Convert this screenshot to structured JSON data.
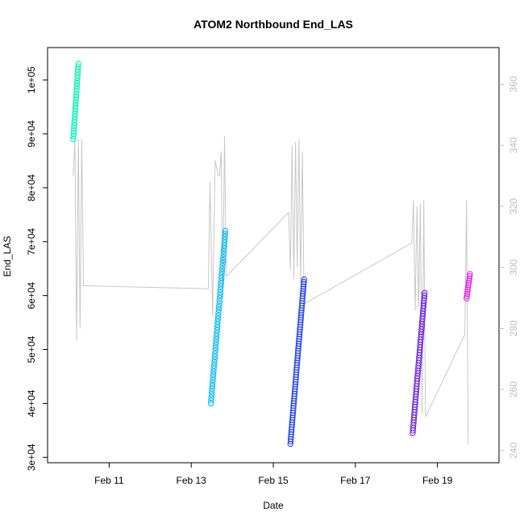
{
  "chart_data": {
    "type": "scatter",
    "title": "ATOM2 Northbound End_LAS",
    "xlabel": "Date",
    "ylabel": "End_LAS",
    "xlim": [
      "2024-02-09 12:00",
      "2024-02-20 12:00"
    ],
    "ylim": [
      29000,
      106000
    ],
    "y2lim": [
      236,
      372
    ],
    "x_ticks": [
      {
        "x": "2024-02-11",
        "label": "Feb 11"
      },
      {
        "x": "2024-02-13",
        "label": "Feb 13"
      },
      {
        "x": "2024-02-15",
        "label": "Feb 15"
      },
      {
        "x": "2024-02-17",
        "label": "Feb 17"
      },
      {
        "x": "2024-02-19",
        "label": "Feb 19"
      }
    ],
    "y_ticks": [
      {
        "value": 30000,
        "label": "3e+04"
      },
      {
        "value": 40000,
        "label": "4e+04"
      },
      {
        "value": 50000,
        "label": "5e+04"
      },
      {
        "value": 60000,
        "label": "6e+04"
      },
      {
        "value": 70000,
        "label": "7e+04"
      },
      {
        "value": 80000,
        "label": "8e+04"
      },
      {
        "value": 90000,
        "label": "9e+04"
      },
      {
        "value": 100000,
        "label": "1e+05"
      }
    ],
    "y2_ticks": [
      {
        "value": 240,
        "label": "240"
      },
      {
        "value": 260,
        "label": "260"
      },
      {
        "value": 280,
        "label": "280"
      },
      {
        "value": 300,
        "label": "300"
      },
      {
        "value": 320,
        "label": "320"
      },
      {
        "value": 340,
        "label": "340"
      },
      {
        "value": 360,
        "label": "360"
      }
    ],
    "series": [
      {
        "color": "#00f5b0",
        "x_start": "2024-02-10 03:00",
        "x_end": "2024-02-10 06:00",
        "y_start": 89000,
        "y_end": 103000,
        "n": 28
      },
      {
        "color": "#00b8f5",
        "x_start": "2024-02-13 11:30",
        "x_end": "2024-02-13 20:00",
        "y_start": 40000,
        "y_end": 72000,
        "n": 60
      },
      {
        "color": "#1f3ff0",
        "x_start": "2024-02-15 10:00",
        "x_end": "2024-02-15 18:00",
        "y_start": 32500,
        "y_end": 63000,
        "n": 70
      },
      {
        "color": "#6a1be8",
        "x_start": "2024-02-18 09:30",
        "x_end": "2024-02-18 16:30",
        "y_start": 34500,
        "y_end": 60500,
        "n": 55
      },
      {
        "color": "#e61ee6",
        "x_start": "2024-02-19 17:00",
        "x_end": "2024-02-19 19:00",
        "y_start": 59500,
        "y_end": 64000,
        "n": 12
      }
    ],
    "secondary_line": {
      "color": "#c8c8c8",
      "points": [
        [
          "2024-02-10 03:00",
          330
        ],
        [
          "2024-02-10 04:00",
          342
        ],
        [
          "2024-02-10 05:00",
          276
        ],
        [
          "2024-02-10 06:00",
          342
        ],
        [
          "2024-02-10 07:00",
          280
        ],
        [
          "2024-02-10 08:00",
          342
        ],
        [
          "2024-02-10 09:00",
          294
        ],
        [
          "2024-02-13 10:00",
          293
        ],
        [
          "2024-02-13 11:00",
          328
        ],
        [
          "2024-02-13 12:30",
          284
        ],
        [
          "2024-02-13 14:00",
          335
        ],
        [
          "2024-02-13 15:30",
          331
        ],
        [
          "2024-02-13 16:30",
          330
        ],
        [
          "2024-02-13 17:30",
          338
        ],
        [
          "2024-02-13 18:30",
          290
        ],
        [
          "2024-02-13 19:30",
          343
        ],
        [
          "2024-02-13 20:30",
          297
        ],
        [
          "2024-02-15 09:00",
          318
        ],
        [
          "2024-02-15 10:00",
          299
        ],
        [
          "2024-02-15 11:00",
          340
        ],
        [
          "2024-02-15 12:00",
          296
        ],
        [
          "2024-02-15 13:00",
          341
        ],
        [
          "2024-02-15 14:00",
          300
        ],
        [
          "2024-02-15 15:00",
          342
        ],
        [
          "2024-02-15 16:00",
          295
        ],
        [
          "2024-02-15 17:00",
          338
        ],
        [
          "2024-02-15 18:00",
          288
        ],
        [
          "2024-02-18 09:00",
          308
        ],
        [
          "2024-02-18 10:00",
          322
        ],
        [
          "2024-02-18 11:00",
          286
        ],
        [
          "2024-02-18 12:00",
          320
        ],
        [
          "2024-02-18 13:00",
          287
        ],
        [
          "2024-02-18 14:00",
          321
        ],
        [
          "2024-02-18 15:00",
          252
        ],
        [
          "2024-02-18 16:00",
          322
        ],
        [
          "2024-02-18 17:00",
          251
        ],
        [
          "2024-02-19 16:00",
          278
        ],
        [
          "2024-02-19 17:00",
          322
        ],
        [
          "2024-02-19 18:00",
          242
        ]
      ]
    }
  }
}
